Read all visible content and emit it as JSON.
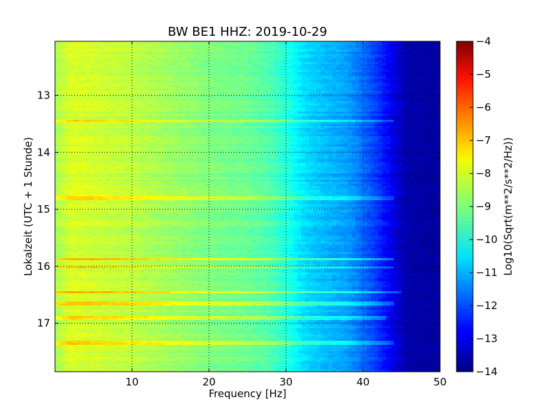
{
  "chart_data": {
    "type": "heatmap",
    "title": "BW BE1 HHZ: 2019-10-29",
    "xlabel": "Frequency [Hz]",
    "ylabel": "Lokalzeit (UTC + 1 Stunde)",
    "colorbar_label": "Log10(Sqrt(m**2/s**2/Hz))",
    "colormap": "jet",
    "xlim": [
      0,
      50
    ],
    "ylim": [
      12.05,
      17.85
    ],
    "y_inverted": true,
    "clim": [
      -14,
      -4
    ],
    "x_ticks": [
      10,
      20,
      30,
      40,
      50
    ],
    "x_tick_labels": [
      "10",
      "20",
      "30",
      "40",
      "50"
    ],
    "y_ticks": [
      13,
      14,
      15,
      16,
      17
    ],
    "y_tick_labels": [
      "13",
      "14",
      "15",
      "16",
      "17"
    ],
    "colorbar_ticks": [
      -4,
      -5,
      -6,
      -7,
      -8,
      -9,
      -10,
      -11,
      -12,
      -13,
      -14
    ],
    "colorbar_tick_labels": [
      "−4",
      "−5",
      "−6",
      "−7",
      "−8",
      "−9",
      "−10",
      "−11",
      "−12",
      "−13",
      "−14"
    ],
    "grid": true,
    "level_profile": {
      "frequency_hz": [
        0,
        2,
        5,
        10,
        15,
        20,
        25,
        28,
        30,
        32,
        34,
        36,
        38,
        40,
        42,
        44,
        45,
        46,
        50
      ],
      "log10_level": [
        -8.6,
        -8.1,
        -8.2,
        -8.4,
        -8.7,
        -9.0,
        -9.2,
        -9.5,
        -9.9,
        -10.5,
        -10.8,
        -11.0,
        -11.2,
        -11.7,
        -12.3,
        -13.0,
        -13.4,
        -13.6,
        -13.7
      ]
    },
    "bright_time_bands": [
      {
        "time_hour": 13.45,
        "max_frequency_hz": 44,
        "delta": 0.8
      },
      {
        "time_hour": 14.8,
        "max_frequency_hz": 44,
        "delta": 0.9
      },
      {
        "time_hour": 15.88,
        "max_frequency_hz": 44,
        "delta": 1.2
      },
      {
        "time_hour": 16.02,
        "max_frequency_hz": 44,
        "delta": 1.0
      },
      {
        "time_hour": 16.45,
        "max_frequency_hz": 45,
        "delta": 1.1
      },
      {
        "time_hour": 16.65,
        "max_frequency_hz": 44,
        "delta": 0.9
      },
      {
        "time_hour": 16.9,
        "max_frequency_hz": 43,
        "delta": 0.8
      },
      {
        "time_hour": 17.35,
        "max_frequency_hz": 44,
        "delta": 0.8
      }
    ]
  }
}
